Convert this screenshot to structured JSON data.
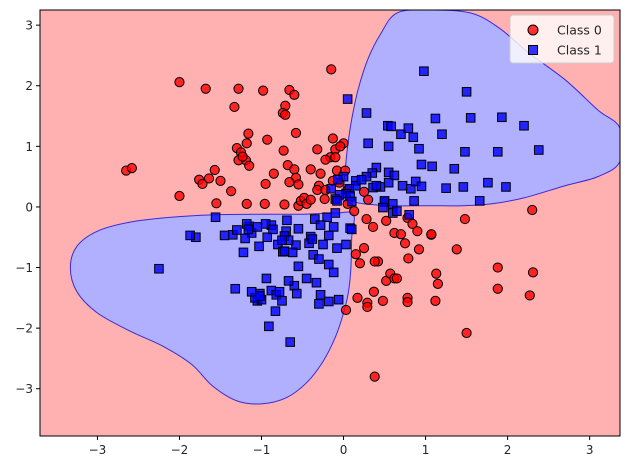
{
  "chart_data": {
    "type": "scatter",
    "title": "",
    "xlabel": "",
    "ylabel": "",
    "xlim": [
      -3.7,
      3.37
    ],
    "ylim": [
      -3.78,
      3.25
    ],
    "xticks": [
      -3,
      -2,
      -1,
      0,
      1,
      2,
      3
    ],
    "yticks": [
      -3,
      -2,
      -1,
      0,
      1,
      2,
      3
    ],
    "xtick_labels": [
      "−3",
      "−2",
      "−1",
      "0",
      "1",
      "2",
      "3"
    ],
    "ytick_labels": [
      "−3",
      "−2",
      "−1",
      "0",
      "1",
      "2",
      "3"
    ],
    "grid": false,
    "legend_position": "upper right",
    "background_region": {
      "label": "Class 0 decision region",
      "color": "#ffb0b0"
    },
    "decision_regions": [
      {
        "label": "Class 1 region (upper right)",
        "color": "#b0b0ff",
        "edge_color": "#3a2ad8",
        "polygon": [
          [
            -0.01,
            0.12
          ],
          [
            0.02,
            0.6
          ],
          [
            0.05,
            1.0
          ],
          [
            0.1,
            1.45
          ],
          [
            0.18,
            1.95
          ],
          [
            0.3,
            2.45
          ],
          [
            0.45,
            2.85
          ],
          [
            0.65,
            3.2
          ],
          [
            1.05,
            3.25
          ],
          [
            1.55,
            3.2
          ],
          [
            1.9,
            2.95
          ],
          [
            2.25,
            2.55
          ],
          [
            2.7,
            2.1
          ],
          [
            3.1,
            1.6
          ],
          [
            3.37,
            1.3
          ],
          [
            3.37,
            0.75
          ],
          [
            3.1,
            0.5
          ],
          [
            2.7,
            0.35
          ],
          [
            2.2,
            0.15
          ],
          [
            1.8,
            0.05
          ],
          [
            1.45,
            0.02
          ],
          [
            1.05,
            0.02
          ],
          [
            0.6,
            0.02
          ],
          [
            0.25,
            0.05
          ],
          [
            0.08,
            0.1
          ]
        ]
      },
      {
        "label": "Class 1 region (lower left)",
        "color": "#b0b0ff",
        "edge_color": "#3a2ad8",
        "polygon": [
          [
            0.12,
            -0.12
          ],
          [
            0.1,
            -0.5
          ],
          [
            0.09,
            -1.0
          ],
          [
            0.06,
            -1.4
          ],
          [
            0.0,
            -1.75
          ],
          [
            -0.1,
            -2.15
          ],
          [
            -0.25,
            -2.55
          ],
          [
            -0.45,
            -2.9
          ],
          [
            -0.7,
            -3.15
          ],
          [
            -1.0,
            -3.25
          ],
          [
            -1.3,
            -3.2
          ],
          [
            -1.6,
            -2.95
          ],
          [
            -1.85,
            -2.6
          ],
          [
            -2.2,
            -2.3
          ],
          [
            -2.6,
            -2.05
          ],
          [
            -3.0,
            -1.75
          ],
          [
            -3.25,
            -1.4
          ],
          [
            -3.33,
            -1.0
          ],
          [
            -3.25,
            -0.65
          ],
          [
            -3.0,
            -0.4
          ],
          [
            -2.6,
            -0.25
          ],
          [
            -2.1,
            -0.17
          ],
          [
            -1.6,
            -0.13
          ],
          [
            -1.0,
            -0.12
          ],
          [
            -0.5,
            -0.12
          ],
          [
            -0.1,
            -0.1
          ]
        ]
      }
    ],
    "series": [
      {
        "name": "Class 0",
        "marker": "circle",
        "color": "#ff0000",
        "edge_color": "#000000",
        "alpha": 0.8,
        "points": [
          [
            -2.0,
            2.06
          ],
          [
            -1.68,
            1.95
          ],
          [
            -1.28,
            1.95
          ],
          [
            -0.98,
            1.92
          ],
          [
            -0.66,
            1.93
          ],
          [
            -0.6,
            1.85
          ],
          [
            -1.33,
            1.65
          ],
          [
            -0.71,
            1.67
          ],
          [
            -0.74,
            1.55
          ],
          [
            -0.71,
            1.52
          ],
          [
            -0.58,
            1.22
          ],
          [
            -1.16,
            1.21
          ],
          [
            -1.18,
            1.05
          ],
          [
            -0.93,
            1.11
          ],
          [
            -1.3,
            0.97
          ],
          [
            -1.25,
            0.9
          ],
          [
            -1.28,
            0.77
          ],
          [
            -1.19,
            0.77
          ],
          [
            -1.23,
            0.83
          ],
          [
            -0.73,
            0.93
          ],
          [
            -1.15,
            0.68
          ],
          [
            -0.68,
            0.69
          ],
          [
            -0.85,
            0.55
          ],
          [
            -0.6,
            0.62
          ],
          [
            -0.58,
            0.48
          ],
          [
            -0.66,
            0.41
          ],
          [
            -0.55,
            0.37
          ],
          [
            -0.95,
            0.38
          ],
          [
            -2.65,
            0.6
          ],
          [
            -2.58,
            0.64
          ],
          [
            -1.76,
            0.45
          ],
          [
            -1.72,
            0.38
          ],
          [
            -1.64,
            0.47
          ],
          [
            -1.57,
            0.61
          ],
          [
            -1.5,
            0.43
          ],
          [
            -1.37,
            0.26
          ],
          [
            -2.0,
            0.18
          ],
          [
            -1.55,
            0.06
          ],
          [
            -1.18,
            0.05
          ],
          [
            -0.96,
            0.05
          ],
          [
            -0.72,
            0.04
          ],
          [
            -0.55,
            0.02
          ],
          [
            -0.52,
            0.1
          ],
          [
            -0.48,
            0.15
          ],
          [
            -0.45,
            0.05
          ],
          [
            -0.4,
            0.12
          ],
          [
            -0.3,
            0.35
          ],
          [
            -0.1,
            0.95
          ],
          [
            0.0,
            1.05
          ],
          [
            -0.13,
            1.13
          ],
          [
            -0.16,
            0.82
          ],
          [
            -0.22,
            0.78
          ],
          [
            -0.4,
            0.62
          ],
          [
            -0.32,
            0.28
          ],
          [
            -0.22,
            0.28
          ],
          [
            -0.08,
            0.6
          ],
          [
            -0.05,
            0.4
          ],
          [
            -0.13,
            0.43
          ],
          [
            -0.04,
            1.0
          ],
          [
            -0.15,
            2.27
          ],
          [
            -0.32,
            0.95
          ],
          [
            -0.28,
            0.55
          ],
          [
            -0.1,
            0.82
          ],
          [
            0.02,
            0.6
          ],
          [
            -0.23,
            0.13
          ],
          [
            0.05,
            0.05
          ],
          [
            0.13,
            -0.07
          ],
          [
            0.28,
            -0.2
          ],
          [
            0.36,
            -0.33
          ],
          [
            0.52,
            -0.23
          ],
          [
            0.62,
            -0.43
          ],
          [
            0.7,
            -0.45
          ],
          [
            0.78,
            -0.18
          ],
          [
            0.84,
            -0.28
          ],
          [
            0.9,
            -0.4
          ],
          [
            1.07,
            -0.46
          ],
          [
            1.48,
            -0.2
          ],
          [
            0.15,
            -0.78
          ],
          [
            0.25,
            -0.68
          ],
          [
            0.2,
            -0.93
          ],
          [
            0.42,
            -0.9
          ],
          [
            0.52,
            -1.22
          ],
          [
            0.57,
            -1.1
          ],
          [
            0.37,
            -1.4
          ],
          [
            0.17,
            -1.5
          ],
          [
            0.29,
            -1.58
          ],
          [
            0.29,
            -1.65
          ],
          [
            0.75,
            -0.6
          ],
          [
            0.79,
            -0.85
          ],
          [
            0.92,
            -0.7
          ],
          [
            1.07,
            -0.45
          ],
          [
            1.38,
            -0.7
          ],
          [
            0.62,
            -1.18
          ],
          [
            0.65,
            -1.18
          ],
          [
            0.78,
            -1.5
          ],
          [
            0.78,
            -1.57
          ],
          [
            0.48,
            -1.55
          ],
          [
            1.12,
            -1.55
          ],
          [
            1.13,
            -1.1
          ],
          [
            1.15,
            -1.27
          ],
          [
            1.88,
            -1.0
          ],
          [
            2.31,
            -1.08
          ],
          [
            1.88,
            -1.35
          ],
          [
            2.27,
            -1.46
          ],
          [
            1.5,
            -2.08
          ],
          [
            0.38,
            -2.8
          ],
          [
            0.03,
            -1.7
          ],
          [
            0.38,
            -0.9
          ],
          [
            2.3,
            -0.05
          ],
          [
            0.3,
            0.12
          ],
          [
            0.25,
            0.25
          ],
          [
            0.05,
            0.28
          ]
        ]
      },
      {
        "name": "Class 1",
        "marker": "square",
        "color": "#0000ff",
        "edge_color": "#000000",
        "alpha": 0.8,
        "points": [
          [
            0.98,
            2.24
          ],
          [
            1.5,
            1.9
          ],
          [
            1.55,
            1.47
          ],
          [
            1.93,
            1.48
          ],
          [
            2.2,
            1.34
          ],
          [
            1.12,
            1.46
          ],
          [
            0.28,
            1.55
          ],
          [
            0.54,
            1.34
          ],
          [
            0.3,
            1.05
          ],
          [
            0.58,
            1.33
          ],
          [
            0.7,
            1.2
          ],
          [
            0.79,
            1.3
          ],
          [
            0.85,
            1.15
          ],
          [
            0.55,
            1.0
          ],
          [
            0.92,
            0.96
          ],
          [
            1.2,
            1.2
          ],
          [
            0.95,
            0.7
          ],
          [
            1.35,
            0.63
          ],
          [
            1.48,
            0.91
          ],
          [
            1.88,
            0.91
          ],
          [
            2.38,
            0.94
          ],
          [
            1.08,
            0.67
          ],
          [
            0.4,
            0.65
          ],
          [
            0.55,
            0.57
          ],
          [
            0.62,
            0.52
          ],
          [
            0.72,
            0.35
          ],
          [
            0.82,
            0.3
          ],
          [
            0.88,
            0.42
          ],
          [
            0.35,
            0.56
          ],
          [
            0.28,
            0.5
          ],
          [
            0.15,
            0.43
          ],
          [
            0.15,
            0.35
          ],
          [
            0.07,
            0.3
          ],
          [
            0.03,
            0.22
          ],
          [
            -0.05,
            0.2
          ],
          [
            -0.1,
            0.13
          ],
          [
            0.08,
            0.18
          ],
          [
            0.1,
            0.09
          ],
          [
            0.0,
            0.5
          ],
          [
            0.05,
            1.78
          ],
          [
            0.22,
            0.45
          ],
          [
            0.36,
            0.32
          ],
          [
            0.45,
            0.33
          ],
          [
            0.55,
            0.4
          ],
          [
            0.95,
            0.34
          ],
          [
            1.25,
            0.31
          ],
          [
            1.46,
            0.33
          ],
          [
            1.98,
            0.33
          ],
          [
            1.76,
            0.4
          ],
          [
            1.66,
            0.1
          ],
          [
            0.5,
            0.08
          ],
          [
            0.5,
            0.1
          ],
          [
            0.6,
            0.05
          ],
          [
            0.8,
            -0.13
          ],
          [
            0.6,
            -0.1
          ],
          [
            0.65,
            -0.07
          ],
          [
            0.86,
            0.1
          ],
          [
            0.4,
            0.35
          ],
          [
            0.48,
            -0.01
          ],
          [
            -0.07,
            0.45
          ],
          [
            -0.15,
            0.3
          ],
          [
            -0.08,
            0.1
          ],
          [
            -0.1,
            -0.1
          ],
          [
            -0.2,
            -0.17
          ],
          [
            -0.35,
            -0.2
          ],
          [
            -0.28,
            -0.3
          ],
          [
            -0.12,
            -0.33
          ],
          [
            0.08,
            -0.35
          ],
          [
            -0.18,
            -0.47
          ],
          [
            -0.08,
            -0.68
          ],
          [
            -0.25,
            -0.62
          ],
          [
            -0.4,
            -0.49
          ],
          [
            -0.42,
            -0.6
          ],
          [
            -0.55,
            -0.36
          ],
          [
            -0.58,
            -0.63
          ],
          [
            -0.69,
            -0.22
          ],
          [
            -0.7,
            -0.4
          ],
          [
            -0.72,
            -0.48
          ],
          [
            -0.67,
            -0.55
          ],
          [
            -0.8,
            -0.62
          ],
          [
            -0.88,
            -0.3
          ],
          [
            -0.93,
            -0.5
          ],
          [
            -0.95,
            -0.28
          ],
          [
            -1.03,
            -0.65
          ],
          [
            -1.12,
            -0.43
          ],
          [
            -1.2,
            -0.52
          ],
          [
            -1.15,
            -0.32
          ],
          [
            -1.35,
            -0.46
          ],
          [
            -1.45,
            -0.47
          ],
          [
            -1.3,
            -0.38
          ],
          [
            -1.18,
            -0.28
          ],
          [
            -1.16,
            -0.37
          ],
          [
            -1.05,
            -0.33
          ],
          [
            -1.8,
            -0.5
          ],
          [
            -1.56,
            -0.17
          ],
          [
            -1.87,
            -0.47
          ],
          [
            -0.86,
            -0.37
          ],
          [
            -0.75,
            -0.55
          ],
          [
            -0.74,
            -0.74
          ],
          [
            -0.62,
            -0.75
          ],
          [
            -0.37,
            -0.79
          ],
          [
            -0.3,
            -0.86
          ],
          [
            -0.45,
            -1.18
          ],
          [
            -0.33,
            -1.25
          ],
          [
            -0.28,
            -1.45
          ],
          [
            -0.18,
            -1.56
          ],
          [
            -0.06,
            -1.53
          ],
          [
            -0.3,
            -1.6
          ],
          [
            -0.55,
            -0.98
          ],
          [
            -0.72,
            -0.73
          ],
          [
            -0.88,
            -1.38
          ],
          [
            -0.6,
            -1.3
          ],
          [
            -0.82,
            -1.45
          ],
          [
            -0.67,
            -1.22
          ],
          [
            -0.57,
            -1.43
          ],
          [
            -0.75,
            -1.55
          ],
          [
            -1.02,
            -1.43
          ],
          [
            -1.05,
            -1.55
          ],
          [
            -1.0,
            -1.53
          ],
          [
            -1.08,
            -1.5
          ],
          [
            -1.32,
            -1.35
          ],
          [
            -1.12,
            -1.4
          ],
          [
            -0.94,
            -1.18
          ],
          [
            -0.78,
            -1.4
          ],
          [
            -0.83,
            -1.72
          ],
          [
            -0.91,
            -1.97
          ],
          [
            -0.65,
            -2.23
          ],
          [
            -2.25,
            -1.02
          ],
          [
            -1.02,
            -1.47
          ],
          [
            -1.22,
            -0.75
          ],
          [
            -0.38,
            -0.53
          ],
          [
            -0.18,
            -0.95
          ],
          [
            -0.12,
            -1.08
          ],
          [
            0.03,
            -0.62
          ],
          [
            0.1,
            -0.37
          ]
        ]
      }
    ]
  },
  "legend": {
    "items": [
      {
        "label": "Class 0",
        "marker": "circle"
      },
      {
        "label": "Class 1",
        "marker": "square"
      }
    ]
  }
}
